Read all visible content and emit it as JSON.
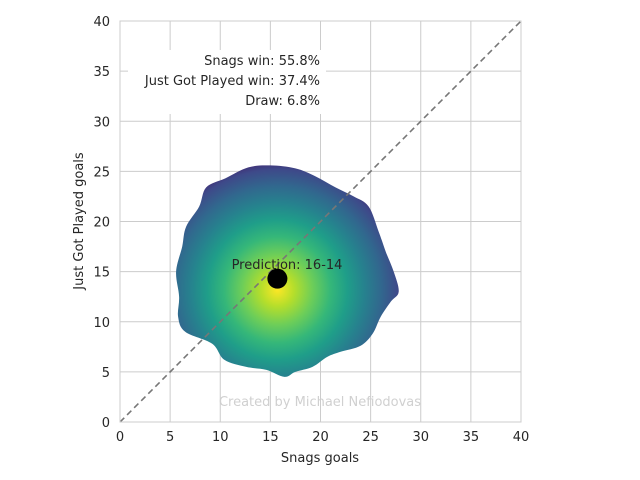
{
  "chart_data": {
    "type": "heatmap",
    "xlabel": "Snags goals",
    "ylabel": "Just Got Played goals",
    "xlim": [
      0,
      40
    ],
    "ylim": [
      0,
      40
    ],
    "xticks": [
      "0",
      "5",
      "10",
      "15",
      "20",
      "25",
      "30",
      "35",
      "40"
    ],
    "yticks": [
      "0",
      "5",
      "10",
      "15",
      "20",
      "25",
      "30",
      "35",
      "40"
    ],
    "grid": true,
    "diagonal": {
      "from": [
        0,
        0
      ],
      "to": [
        40,
        40
      ],
      "style": "dashed",
      "color": "#777777"
    },
    "stats": [
      "Snags win: 55.8%",
      "Just Got Played win: 37.4%",
      "Draw: 6.8%"
    ],
    "prediction": {
      "label": "Prediction: 16-14",
      "x": 15.7,
      "y": 14.3
    },
    "density": {
      "peak": [
        15.7,
        13.2
      ],
      "colormap": "viridis",
      "boundary": [
        [
          15.0,
          25.6
        ],
        [
          17.5,
          25.3
        ],
        [
          19.5,
          24.5
        ],
        [
          21.5,
          23.4
        ],
        [
          23.3,
          22.5
        ],
        [
          24.8,
          21.5
        ],
        [
          25.8,
          19.0
        ],
        [
          26.5,
          17.0
        ],
        [
          27.3,
          15.0
        ],
        [
          27.8,
          13.0
        ],
        [
          27.0,
          12.0
        ],
        [
          26.0,
          10.5
        ],
        [
          25.2,
          8.8
        ],
        [
          24.0,
          7.6
        ],
        [
          22.0,
          7.0
        ],
        [
          20.7,
          6.5
        ],
        [
          19.2,
          5.5
        ],
        [
          17.5,
          5.0
        ],
        [
          16.4,
          4.5
        ],
        [
          14.6,
          5.2
        ],
        [
          12.6,
          5.5
        ],
        [
          10.4,
          6.2
        ],
        [
          9.2,
          7.8
        ],
        [
          6.5,
          9.0
        ],
        [
          5.8,
          10.5
        ],
        [
          5.9,
          12.5
        ],
        [
          5.6,
          15.0
        ],
        [
          6.2,
          17.5
        ],
        [
          6.6,
          19.5
        ],
        [
          7.9,
          21.5
        ],
        [
          8.6,
          23.4
        ],
        [
          10.5,
          24.3
        ],
        [
          12.8,
          25.4
        ]
      ]
    },
    "watermark": "Created by Michael Nefiodovas"
  }
}
